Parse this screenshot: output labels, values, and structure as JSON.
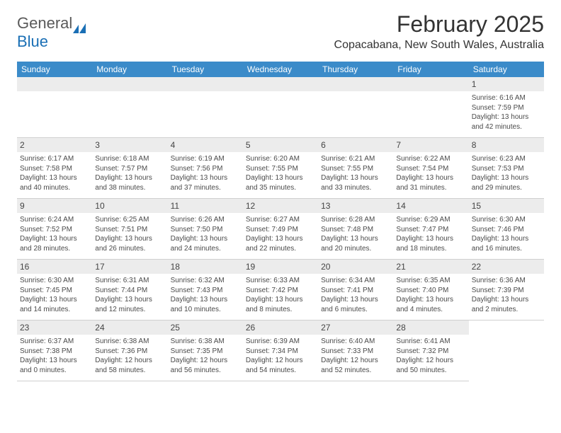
{
  "logo": {
    "text_gray": "General",
    "text_blue": "Blue"
  },
  "title": "February 2025",
  "location": "Copacabana, New South Wales, Australia",
  "header_bg": "#3b8bc9",
  "header_text_color": "#ffffff",
  "daynum_bg": "#ececec",
  "border_color": "#d0d0d0",
  "weekdays": [
    "Sunday",
    "Monday",
    "Tuesday",
    "Wednesday",
    "Thursday",
    "Friday",
    "Saturday"
  ],
  "leading_blanks": 6,
  "days": [
    {
      "n": 1,
      "sunrise": "6:16 AM",
      "sunset": "7:59 PM",
      "daylight": "13 hours and 42 minutes."
    },
    {
      "n": 2,
      "sunrise": "6:17 AM",
      "sunset": "7:58 PM",
      "daylight": "13 hours and 40 minutes."
    },
    {
      "n": 3,
      "sunrise": "6:18 AM",
      "sunset": "7:57 PM",
      "daylight": "13 hours and 38 minutes."
    },
    {
      "n": 4,
      "sunrise": "6:19 AM",
      "sunset": "7:56 PM",
      "daylight": "13 hours and 37 minutes."
    },
    {
      "n": 5,
      "sunrise": "6:20 AM",
      "sunset": "7:55 PM",
      "daylight": "13 hours and 35 minutes."
    },
    {
      "n": 6,
      "sunrise": "6:21 AM",
      "sunset": "7:55 PM",
      "daylight": "13 hours and 33 minutes."
    },
    {
      "n": 7,
      "sunrise": "6:22 AM",
      "sunset": "7:54 PM",
      "daylight": "13 hours and 31 minutes."
    },
    {
      "n": 8,
      "sunrise": "6:23 AM",
      "sunset": "7:53 PM",
      "daylight": "13 hours and 29 minutes."
    },
    {
      "n": 9,
      "sunrise": "6:24 AM",
      "sunset": "7:52 PM",
      "daylight": "13 hours and 28 minutes."
    },
    {
      "n": 10,
      "sunrise": "6:25 AM",
      "sunset": "7:51 PM",
      "daylight": "13 hours and 26 minutes."
    },
    {
      "n": 11,
      "sunrise": "6:26 AM",
      "sunset": "7:50 PM",
      "daylight": "13 hours and 24 minutes."
    },
    {
      "n": 12,
      "sunrise": "6:27 AM",
      "sunset": "7:49 PM",
      "daylight": "13 hours and 22 minutes."
    },
    {
      "n": 13,
      "sunrise": "6:28 AM",
      "sunset": "7:48 PM",
      "daylight": "13 hours and 20 minutes."
    },
    {
      "n": 14,
      "sunrise": "6:29 AM",
      "sunset": "7:47 PM",
      "daylight": "13 hours and 18 minutes."
    },
    {
      "n": 15,
      "sunrise": "6:30 AM",
      "sunset": "7:46 PM",
      "daylight": "13 hours and 16 minutes."
    },
    {
      "n": 16,
      "sunrise": "6:30 AM",
      "sunset": "7:45 PM",
      "daylight": "13 hours and 14 minutes."
    },
    {
      "n": 17,
      "sunrise": "6:31 AM",
      "sunset": "7:44 PM",
      "daylight": "13 hours and 12 minutes."
    },
    {
      "n": 18,
      "sunrise": "6:32 AM",
      "sunset": "7:43 PM",
      "daylight": "13 hours and 10 minutes."
    },
    {
      "n": 19,
      "sunrise": "6:33 AM",
      "sunset": "7:42 PM",
      "daylight": "13 hours and 8 minutes."
    },
    {
      "n": 20,
      "sunrise": "6:34 AM",
      "sunset": "7:41 PM",
      "daylight": "13 hours and 6 minutes."
    },
    {
      "n": 21,
      "sunrise": "6:35 AM",
      "sunset": "7:40 PM",
      "daylight": "13 hours and 4 minutes."
    },
    {
      "n": 22,
      "sunrise": "6:36 AM",
      "sunset": "7:39 PM",
      "daylight": "13 hours and 2 minutes."
    },
    {
      "n": 23,
      "sunrise": "6:37 AM",
      "sunset": "7:38 PM",
      "daylight": "13 hours and 0 minutes."
    },
    {
      "n": 24,
      "sunrise": "6:38 AM",
      "sunset": "7:36 PM",
      "daylight": "12 hours and 58 minutes."
    },
    {
      "n": 25,
      "sunrise": "6:38 AM",
      "sunset": "7:35 PM",
      "daylight": "12 hours and 56 minutes."
    },
    {
      "n": 26,
      "sunrise": "6:39 AM",
      "sunset": "7:34 PM",
      "daylight": "12 hours and 54 minutes."
    },
    {
      "n": 27,
      "sunrise": "6:40 AM",
      "sunset": "7:33 PM",
      "daylight": "12 hours and 52 minutes."
    },
    {
      "n": 28,
      "sunrise": "6:41 AM",
      "sunset": "7:32 PM",
      "daylight": "12 hours and 50 minutes."
    }
  ],
  "labels": {
    "sunrise": "Sunrise:",
    "sunset": "Sunset:",
    "daylight": "Daylight:"
  }
}
